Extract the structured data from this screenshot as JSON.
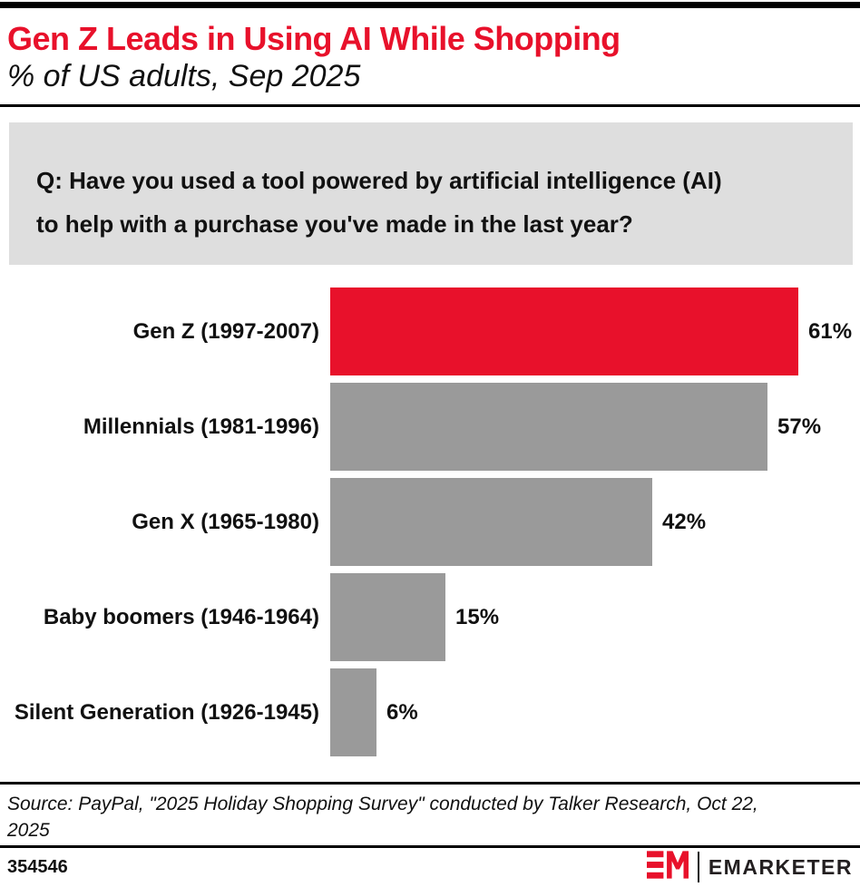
{
  "header": {
    "title": "Gen Z Leads in Using AI While Shopping",
    "subtitle": "% of US adults, Sep 2025",
    "title_color": "#E8112B"
  },
  "question": {
    "text": "Q: Have you used a tool powered by artificial intelligence (AI)\nto help with a purchase you've made in the last year?",
    "background": "#DEDEDE"
  },
  "chart_data": {
    "type": "bar",
    "orientation": "horizontal",
    "title": "Gen Z Leads in Using AI While Shopping",
    "subtitle": "% of US adults, Sep 2025",
    "unit": "%",
    "categories": [
      "Gen Z (1997-2007)",
      "Millennials (1981-1996)",
      "Gen X (1965-1980)",
      "Baby boomers (1946-1964)",
      "Silent Generation (1926-1945)"
    ],
    "values": [
      61,
      57,
      42,
      15,
      6
    ],
    "value_labels": [
      "61%",
      "57%",
      "42%",
      "15%",
      "6%"
    ],
    "colors": [
      "#E8112B",
      "#9A9A9A",
      "#9A9A9A",
      "#9A9A9A",
      "#9A9A9A"
    ],
    "highlight_color": "#E8112B",
    "default_color": "#9A9A9A",
    "xlim": [
      0,
      68
    ],
    "grid": false,
    "legend": false,
    "value_label_position": "outside-right"
  },
  "source": {
    "text": "Source: PayPal, \"2025 Holiday Shopping Survey\" conducted by Talker Research, Oct 22,\n2025"
  },
  "footer": {
    "chart_id": "354546",
    "brand_wordmark": "EMARKETER",
    "brand_red": "#E8112B"
  }
}
